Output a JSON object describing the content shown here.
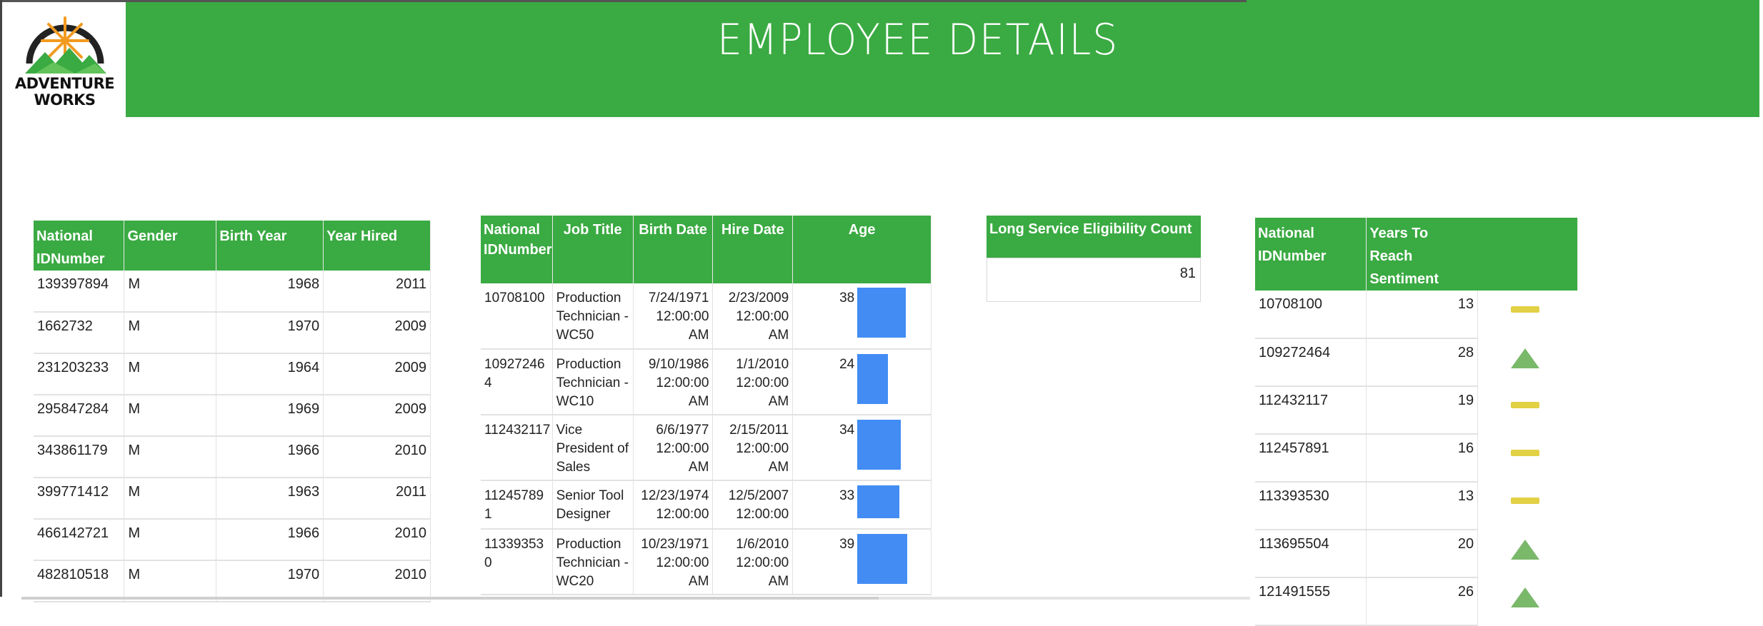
{
  "header": {
    "title": "EMPLOYEE DETAILS",
    "logo": {
      "line1": "ADVENTURE",
      "line2": "WORKS",
      "colors": {
        "sun": "#f29a1f",
        "mountains": "#3aaa42",
        "ring": "#222222"
      }
    },
    "accent": "#3aaa42"
  },
  "table1": {
    "headers": [
      "National IDNumber",
      "Gender",
      "Birth Year",
      "Year Hired"
    ],
    "rows": [
      [
        "139397894",
        "M",
        "1968",
        "2011"
      ],
      [
        "1662732",
        "M",
        "1970",
        "2009"
      ],
      [
        "231203233",
        "M",
        "1964",
        "2009"
      ],
      [
        "295847284",
        "M",
        "1969",
        "2009"
      ],
      [
        "343861179",
        "M",
        "1966",
        "2010"
      ],
      [
        "399771412",
        "M",
        "1963",
        "2011"
      ],
      [
        "466142721",
        "M",
        "1966",
        "2010"
      ],
      [
        "482810518",
        "M",
        "1970",
        "2010"
      ]
    ]
  },
  "table2": {
    "headers": [
      "National IDNumber",
      "Job Title",
      "Birth Date",
      "Hire Date",
      "Age"
    ],
    "bar_color": "#428cf4",
    "rows": [
      {
        "id": "10708100",
        "job": "Production Technician - WC50",
        "birth": "7/24/1971 12:00:00 AM",
        "hire": "2/23/2009 12:00:00 AM",
        "age": 38
      },
      {
        "id": "109272464",
        "job": "Production Technician - WC10",
        "birth": "9/10/1986 12:00:00 AM",
        "hire": "1/1/2010 12:00:00 AM",
        "age": 24
      },
      {
        "id": "112432117",
        "job": "Vice President of Sales",
        "birth": "6/6/1977 12:00:00 AM",
        "hire": "2/15/2011 12:00:00 AM",
        "age": 34
      },
      {
        "id": "112457891",
        "job": "Senior Tool Designer",
        "birth": "12/23/1974 12:00:00",
        "hire": "12/5/2007 12:00:00",
        "age": 33
      },
      {
        "id": "113393530",
        "job": "Production Technician - WC20",
        "birth": "10/23/1971 12:00:00 AM",
        "hire": "1/6/2010 12:00:00 AM",
        "age": 39
      }
    ]
  },
  "card": {
    "label": "Long Service Eligibility Count",
    "value": "81"
  },
  "table4": {
    "headers": [
      "National IDNumber",
      "Years To Reach Sentiment"
    ],
    "colors": {
      "neutral": "#e2d045",
      "up": "#7ab86a"
    },
    "rows": [
      {
        "id": "10708100",
        "years": "13",
        "sentiment": "neutral"
      },
      {
        "id": "109272464",
        "years": "28",
        "sentiment": "up"
      },
      {
        "id": "112432117",
        "years": "19",
        "sentiment": "neutral"
      },
      {
        "id": "112457891",
        "years": "16",
        "sentiment": "neutral"
      },
      {
        "id": "113393530",
        "years": "13",
        "sentiment": "neutral"
      },
      {
        "id": "113695504",
        "years": "20",
        "sentiment": "up"
      },
      {
        "id": "121491555",
        "years": "26",
        "sentiment": "up"
      }
    ]
  }
}
